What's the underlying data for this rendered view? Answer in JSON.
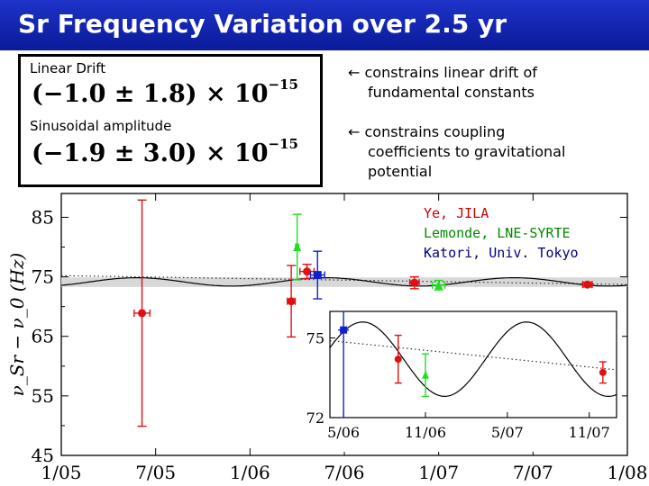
{
  "title": "Sr Frequency Variation over 2.5 yr",
  "box": {
    "linear_label": "Linear Drift",
    "linear_value": "(−1.0 ± 1.8) × 10",
    "linear_exp": "−15",
    "sin_label": "Sinusoidal amplitude",
    "sin_value": "(−1.9 ± 3.0) × 10",
    "sin_exp": "−15"
  },
  "notes": {
    "drift_line1": "constrains linear drift of",
    "drift_line2": "fundamental constants",
    "coupling_line1": "constrains coupling",
    "coupling_line2": "coefficients to gravitational",
    "coupling_line3": "potential"
  },
  "labs": [
    {
      "name": "Ye, JILA",
      "color": "#cc0000"
    },
    {
      "name": "Lemonde, LNE-SYRTE",
      "color": "#008800"
    },
    {
      "name": "Katori, Univ. Tokyo",
      "color": "#000080"
    }
  ],
  "colors": {
    "jila": "#e01010",
    "syrte": "#22dd22",
    "tokyo": "#1020d0",
    "title_bar": "#1428b4"
  },
  "chart_data": [
    {
      "type": "scatter",
      "ylabel": "ν_Sr − ν_0 (Hz)",
      "x_ticks": [
        "1/05",
        "7/05",
        "1/06",
        "7/06",
        "1/07",
        "7/07",
        "1/08"
      ],
      "xlim": [
        "2005-01",
        "2008-01"
      ],
      "y_ticks": [
        45,
        55,
        65,
        75,
        85
      ],
      "ylim": [
        45,
        89
      ],
      "band": [
        73.3,
        74.9
      ],
      "series": [
        {
          "name": "Ye, JILA",
          "color": "#e01010",
          "marker": "circle",
          "points": [
            {
              "x": "2005-06-05",
              "y": 68.9,
              "err": 19,
              "xerr": 0.5
            },
            {
              "x": "2006-03-20",
              "y": 70.9,
              "err": 6,
              "xerr": 0.25
            },
            {
              "x": "2006-04-20",
              "y": 75.9,
              "err": 1.2,
              "xerr": 0.45
            },
            {
              "x": "2006-11-15",
              "y": 74.0,
              "err": 1.0,
              "xerr": 0.3
            },
            {
              "x": "2007-10-15",
              "y": 73.7,
              "err": 0.4,
              "xerr": 0.3
            }
          ]
        },
        {
          "name": "Lemonde, LNE-SYRTE",
          "color": "#22dd22",
          "marker": "triangle",
          "points": [
            {
              "x": "2006-04-01",
              "y": 80.0,
              "err": 5.5,
              "xerr": 0.1
            },
            {
              "x": "2007-01-01",
              "y": 73.6,
              "err": 0.8,
              "xerr": 0.4
            }
          ]
        },
        {
          "name": "Katori, Univ. Tokyo",
          "color": "#1020d0",
          "marker": "square",
          "points": [
            {
              "x": "2006-05-10",
              "y": 75.3,
              "err": 4,
              "xerr": 0.45
            }
          ]
        }
      ]
    },
    {
      "type": "scatter",
      "inset": true,
      "x_ticks": [
        "5/06",
        "11/06",
        "5/07",
        "11/07"
      ],
      "xlim": [
        "2006-04",
        "2008-01"
      ],
      "y_ticks": [
        72,
        75
      ],
      "ylim": [
        72,
        76
      ],
      "series": [
        {
          "name": "Katori, Univ. Tokyo",
          "color": "#1020d0",
          "marker": "square",
          "points": [
            {
              "x": "2006-05-01",
              "y": 75.3,
              "err": 4
            }
          ]
        },
        {
          "name": "Ye, JILA",
          "color": "#e01010",
          "marker": "circle",
          "points": [
            {
              "x": "2006-09-01",
              "y": 74.2,
              "err": 0.9
            },
            {
              "x": "2007-12-01",
              "y": 73.7,
              "err": 0.4
            }
          ]
        },
        {
          "name": "Lemonde, LNE-SYRTE",
          "color": "#22dd22",
          "marker": "triangle",
          "points": [
            {
              "x": "2006-11-01",
              "y": 73.6,
              "err": 0.8
            }
          ]
        }
      ]
    }
  ]
}
